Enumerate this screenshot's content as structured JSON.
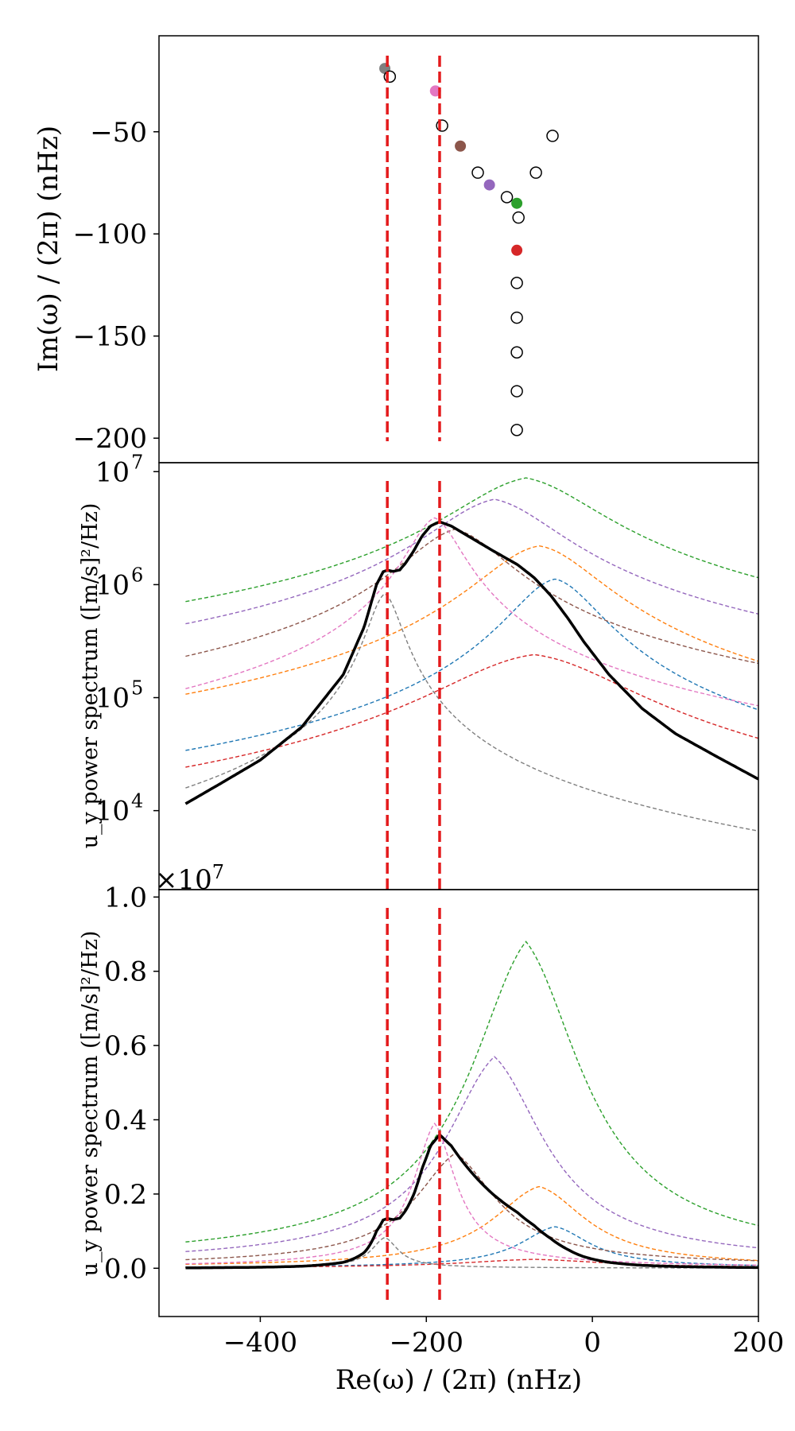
{
  "chart_data": [
    {
      "panel": "top",
      "type": "scatter",
      "ylabel": "Im(ω) / (2π) (nHz)",
      "yticks": [
        -50,
        -100,
        -150,
        -200
      ],
      "ytick_labels": [
        "−50",
        "−100",
        "−150",
        "−200"
      ],
      "ylim": [
        -212,
        -3
      ],
      "xlim": [
        -522,
        200
      ],
      "vlines": [
        -247,
        -184
      ],
      "vline_color": "#e41a1c",
      "filled_points": [
        {
          "x": -250,
          "y": -19,
          "color": "#7f7f7f"
        },
        {
          "x": -189,
          "y": -30,
          "color": "#e377c2"
        },
        {
          "x": -159,
          "y": -57,
          "color": "#8c564b"
        },
        {
          "x": -124,
          "y": -76,
          "color": "#9467bd"
        },
        {
          "x": -91,
          "y": -85,
          "color": "#2ca02c"
        },
        {
          "x": -91,
          "y": -108,
          "color": "#d62728"
        }
      ],
      "open_points": [
        {
          "x": -244,
          "y": -23
        },
        {
          "x": -181,
          "y": -47
        },
        {
          "x": -48,
          "y": -52
        },
        {
          "x": -138,
          "y": -70
        },
        {
          "x": -68,
          "y": -70
        },
        {
          "x": -103,
          "y": -82
        },
        {
          "x": -89,
          "y": -92
        },
        {
          "x": -91,
          "y": -124
        },
        {
          "x": -91,
          "y": -141
        },
        {
          "x": -91,
          "y": -158
        },
        {
          "x": -91,
          "y": -177
        },
        {
          "x": -91,
          "y": -196
        }
      ]
    },
    {
      "panel": "middle",
      "type": "line",
      "yscale": "log",
      "ylabel": "u_y power spectrum ([m/s]²/Hz)",
      "yticks": [
        10000,
        100000,
        1000000,
        10000000
      ],
      "ytick_labels": [
        "10",
        "10",
        "10",
        "10"
      ],
      "ytick_exponents": [
        "4",
        "5",
        "6",
        "7"
      ],
      "ylim": [
        2000,
        12000000
      ],
      "xlim": [
        -522,
        200
      ],
      "vlines": [
        -247,
        -184
      ],
      "total_curve": {
        "name": "total",
        "color": "#000000",
        "x": [
          -490,
          -450,
          -400,
          -350,
          -300,
          -275,
          -260,
          -252,
          -247,
          -240,
          -232,
          -225,
          -215,
          -205,
          -195,
          -184,
          -170,
          -150,
          -120,
          -90,
          -70,
          -50,
          -30,
          -10,
          20,
          60,
          100,
          150,
          200
        ],
        "y": [
          11500,
          17000,
          28000,
          55000,
          160000,
          420000,
          1000000,
          1300000,
          1340000,
          1310000,
          1350000,
          1550000,
          2000000,
          2700000,
          3300000,
          3600000,
          3300000,
          2700000,
          2000000,
          1500000,
          1150000,
          800000,
          510000,
          310000,
          160000,
          80000,
          48000,
          30000,
          19000
        ]
      },
      "series": [
        {
          "name": "green",
          "color": "#2ca02c",
          "peak": -80,
          "amp": 8800000,
          "gamma": 85,
          "tail": 0.3
        },
        {
          "name": "purple",
          "color": "#9467bd",
          "peak": -118,
          "amp": 5700000,
          "gamma": 76,
          "tail": 0.3
        },
        {
          "name": "orange",
          "color": "#ff7f0e",
          "peak": -64,
          "amp": 2200000,
          "gamma": 70,
          "tail": 0.2
        },
        {
          "name": "blue",
          "color": "#1f77b4",
          "peak": -45,
          "amp": 1120000,
          "gamma": 52,
          "tail": 0.2
        },
        {
          "name": "red",
          "color": "#d62728",
          "peak": -70,
          "amp": 240000,
          "gamma": 110,
          "tail": 0.25
        },
        {
          "name": "brown",
          "color": "#8c564b",
          "peak": -165,
          "amp": 3100000,
          "gamma": 62,
          "tail": 0.32
        },
        {
          "name": "pink",
          "color": "#e377c2",
          "peak": -190,
          "amp": 3900000,
          "gamma": 32,
          "tail": 0.25
        },
        {
          "name": "gray",
          "color": "#7f7f7f",
          "peak": -250,
          "amp": 830000,
          "gamma": 20,
          "tail": 0.2
        }
      ]
    },
    {
      "panel": "bottom",
      "type": "line",
      "yscale": "linear",
      "offset_text": "×10",
      "offset_exponent": "7",
      "ylabel": "u_y power spectrum ([m/s]²/Hz)",
      "yticks": [
        0.0,
        0.2,
        0.4,
        0.6,
        0.8,
        1.0
      ],
      "ytick_labels": [
        "0.0",
        "0.2",
        "0.4",
        "0.6",
        "0.8",
        "1.0"
      ],
      "ylim": [
        -0.13,
        1.02
      ],
      "xlim": [
        -522,
        200
      ],
      "xticks": [
        -400,
        -200,
        0,
        200
      ],
      "xtick_labels": [
        "−400",
        "−200",
        "0",
        "200"
      ],
      "xlabel": "Re(ω) / (2π) (nHz)",
      "vlines": [
        -247,
        -184
      ]
    }
  ]
}
